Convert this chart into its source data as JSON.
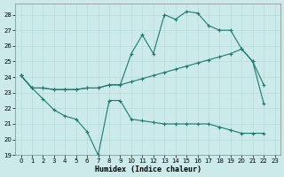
{
  "xlabel": "Humidex (Indice chaleur)",
  "xlim": [
    -0.5,
    23.5
  ],
  "ylim": [
    19,
    28.7
  ],
  "yticks": [
    19,
    20,
    21,
    22,
    23,
    24,
    25,
    26,
    27,
    28
  ],
  "xticks": [
    0,
    1,
    2,
    3,
    4,
    5,
    6,
    7,
    8,
    9,
    10,
    11,
    12,
    13,
    14,
    15,
    16,
    17,
    18,
    19,
    20,
    21,
    22,
    23
  ],
  "bg_color": "#cceaea",
  "line_color": "#1a7a6e",
  "curve1_x": [
    0,
    1,
    2,
    3,
    4,
    5,
    6,
    7,
    8,
    9,
    10,
    11,
    12,
    13,
    14,
    15,
    16,
    17,
    18,
    19,
    20,
    21,
    22
  ],
  "curve1_y": [
    24.1,
    23.3,
    22.6,
    21.9,
    21.5,
    21.3,
    20.5,
    19.0,
    22.5,
    22.5,
    21.3,
    21.2,
    21.1,
    21.0,
    21.0,
    21.0,
    21.0,
    21.0,
    20.8,
    20.6,
    20.4,
    20.4,
    20.4
  ],
  "curve2_x": [
    0,
    1,
    2,
    3,
    4,
    5,
    6,
    7,
    8,
    9,
    10,
    11,
    12,
    13,
    14,
    15,
    16,
    17,
    18,
    19,
    20,
    21,
    22
  ],
  "curve2_y": [
    24.1,
    23.3,
    23.3,
    23.2,
    23.2,
    23.2,
    23.3,
    23.3,
    23.5,
    23.5,
    23.7,
    23.9,
    24.1,
    24.3,
    24.5,
    24.7,
    24.9,
    25.1,
    25.3,
    25.5,
    25.8,
    25.0,
    23.5
  ],
  "curve3_x": [
    0,
    1,
    2,
    3,
    4,
    5,
    6,
    7,
    8,
    9,
    10,
    11,
    12,
    13,
    14,
    15,
    16,
    17,
    18,
    19,
    20,
    21,
    22
  ],
  "curve3_y": [
    24.1,
    23.3,
    23.3,
    23.2,
    23.2,
    23.2,
    23.3,
    23.3,
    23.5,
    23.5,
    25.5,
    26.7,
    25.5,
    28.0,
    27.7,
    28.2,
    28.1,
    27.3,
    27.0,
    27.0,
    25.8,
    25.0,
    22.3
  ]
}
